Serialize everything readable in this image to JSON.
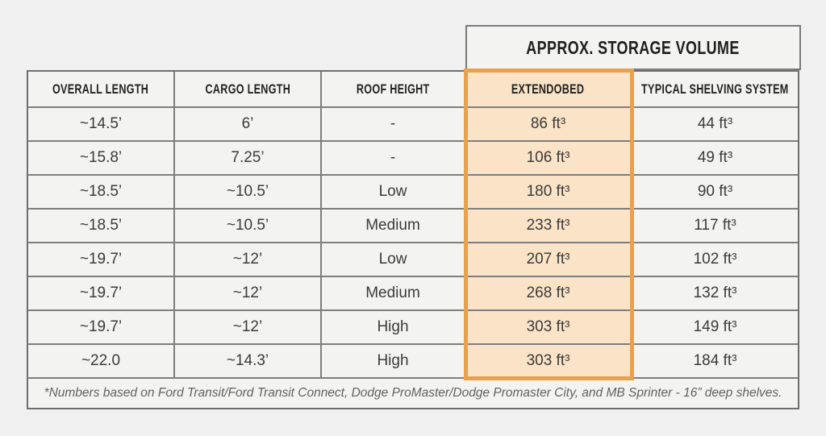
{
  "chart_data": {
    "type": "table",
    "title": "APPROX. STORAGE VOLUME",
    "columns": [
      "OVERALL LENGTH",
      "CARGO LENGTH",
      "ROOF HEIGHT",
      "EXTENDOBED",
      "TYPICAL SHELVING SYSTEM"
    ],
    "rows": [
      [
        "~14.5’",
        "6’",
        "-",
        "86 ft³",
        "44 ft³"
      ],
      [
        "~15.8’",
        "7.25’",
        "-",
        "106 ft³",
        "49 ft³"
      ],
      [
        "~18.5’",
        "~10.5’",
        "Low",
        "180 ft³",
        "90 ft³"
      ],
      [
        "~18.5’",
        "~10.5’",
        "Medium",
        "233 ft³",
        "117 ft³"
      ],
      [
        "~19.7’",
        "~12’",
        "Low",
        "207 ft³",
        "102 ft³"
      ],
      [
        "~19.7’",
        "~12’",
        "Medium",
        "268 ft³",
        "132 ft³"
      ],
      [
        "~19.7’",
        "~12’",
        "High",
        "303 ft³",
        "149 ft³"
      ],
      [
        "~22.0",
        "~14.3’",
        "High",
        "303 ft³",
        "184 ft³"
      ]
    ],
    "footnote": "*Numbers based on Ford Transit/Ford Transit Connect, Dodge ProMaster/Dodge Promaster City, and MB Sprinter - 16” deep shelves.",
    "highlighted_column": "EXTENDOBED",
    "layout_hints": {
      "highlight_fill": "#fae3c6",
      "highlight_border": "#e9a14c",
      "cell_background": "#f3f3f2",
      "grid_line": "#7e7e7e",
      "page_background": "#f0f0f0"
    }
  }
}
